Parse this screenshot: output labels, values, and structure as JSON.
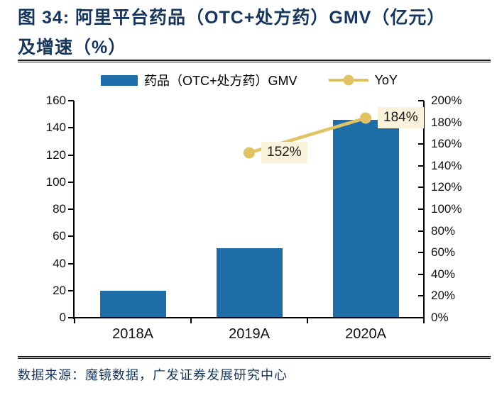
{
  "header": {
    "title_line1": "图 34: 阿里平台药品（OTC+处方药）GMV（亿元）",
    "title_line2": "及增速（%）"
  },
  "footer": {
    "source": "数据来源：魔镜数据，广发证券发展研究中心"
  },
  "colors": {
    "bar": "#1E6CA8",
    "line": "#E2C363",
    "point_label_bg": "#FBF2DB",
    "title_navy": "#17365D",
    "axis": "#000000",
    "rule": "#1A1A22"
  },
  "chart_data": {
    "type": "bar+line",
    "title": "阿里平台药品（OTC+处方药）GMV（亿元）及增速（%）",
    "categories": [
      "2018A",
      "2019A",
      "2020A"
    ],
    "series": [
      {
        "name": "药品（OTC+处方药）GMV",
        "type": "bar",
        "axis": "left",
        "unit": "亿元",
        "color": "#1E6CA8",
        "values": [
          20,
          51,
          146
        ]
      },
      {
        "name": "YoY",
        "type": "line",
        "axis": "right",
        "unit": "%",
        "color": "#E2C363",
        "values": [
          null,
          152,
          184
        ],
        "point_labels": [
          null,
          "152%",
          "184%"
        ]
      }
    ],
    "left_axis": {
      "min": 0,
      "max": 160,
      "step": 20,
      "tick_labels": [
        "0",
        "20",
        "40",
        "60",
        "80",
        "100",
        "120",
        "140",
        "160"
      ]
    },
    "right_axis": {
      "min": 0,
      "max": 200,
      "step": 20,
      "tick_labels": [
        "0%",
        "20%",
        "40%",
        "60%",
        "80%",
        "100%",
        "120%",
        "140%",
        "160%",
        "180%",
        "200%"
      ]
    },
    "legend_position": "top",
    "grid": false
  }
}
